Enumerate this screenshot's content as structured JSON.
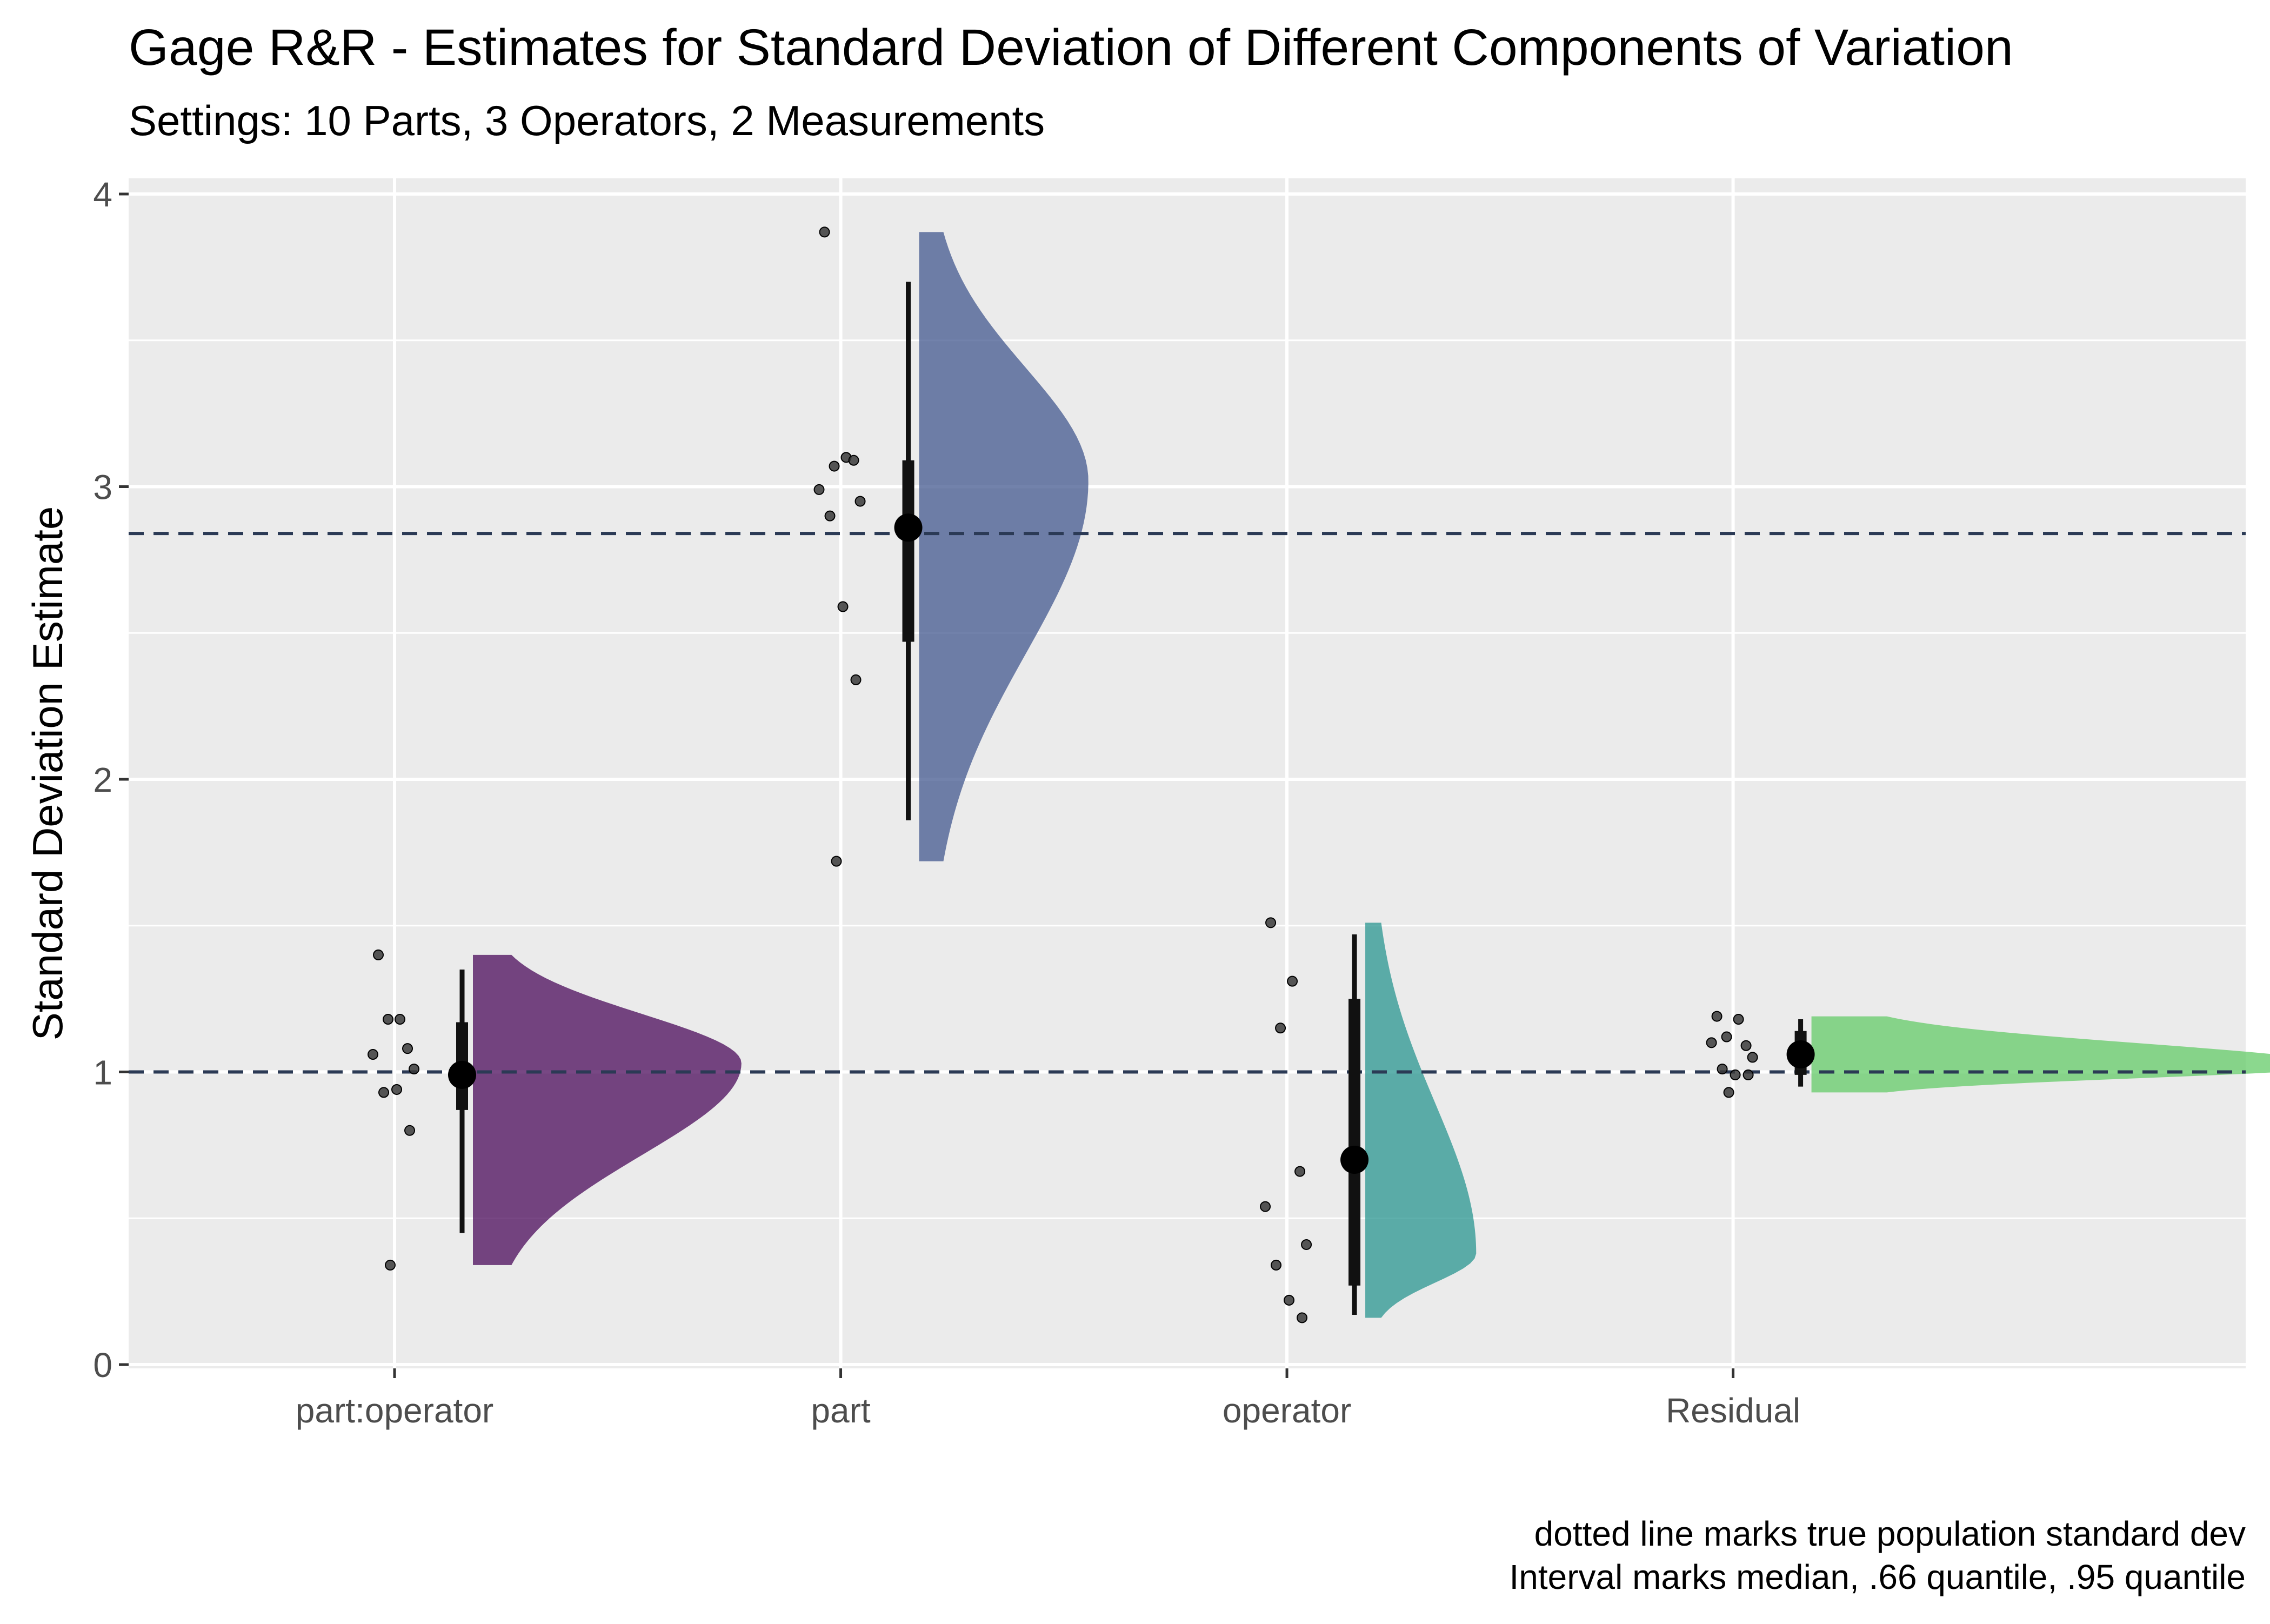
{
  "chart_data": {
    "type": "raincloud",
    "title": "Gage R&R - Estimates for Standard Deviation of Different Components of Variation",
    "subtitle": "Settings: 10 Parts, 3 Operators, 2 Measurements",
    "ylabel": "Standard Deviation Estimate",
    "xlabel": "",
    "ylim": [
      -0.04,
      4.04
    ],
    "yticks": [
      "0",
      "1",
      "2",
      "3",
      "4"
    ],
    "categories": [
      "part:operator",
      "part",
      "operator",
      "Residual"
    ],
    "reference_lines": [
      1,
      2.84
    ],
    "reference_line_style": "dashed",
    "grid": true,
    "caption_line1": "dotted line marks true population standard dev",
    "caption_line2": "Interval marks median, .66 quantile, .95 quantile",
    "series": [
      {
        "category": "part:operator",
        "color": "#440154",
        "points": [
          1.4,
          1.18,
          1.18,
          1.08,
          1.06,
          1.01,
          0.93,
          0.94,
          0.8,
          0.34
        ],
        "median": 0.99,
        "q66": [
          0.87,
          1.17
        ],
        "q95": [
          0.45,
          1.35
        ],
        "density_range": [
          0.34,
          1.4
        ],
        "density_peak": 1.03,
        "density_width_rel": 0.46
      },
      {
        "category": "part",
        "color": "#3b528b",
        "points": [
          3.87,
          3.1,
          3.07,
          3.09,
          2.99,
          2.95,
          2.9,
          2.59,
          2.34,
          1.72
        ],
        "median": 2.86,
        "q66": [
          2.47,
          3.09
        ],
        "q95": [
          1.86,
          3.7
        ],
        "density_range": [
          1.72,
          3.87
        ],
        "density_peak": 3.02,
        "density_width_rel": 0.29
      },
      {
        "category": "operator",
        "color": "#21918c",
        "points": [
          1.51,
          1.31,
          1.15,
          0.66,
          0.54,
          0.41,
          0.34,
          0.22,
          0.16
        ],
        "median": 0.7,
        "q66": [
          0.27,
          1.25
        ],
        "q95": [
          0.17,
          1.47
        ],
        "density_range": [
          0.16,
          1.51
        ],
        "density_peak": 0.38,
        "density_width_rel": 0.19
      },
      {
        "category": "Residual",
        "color": "#5ec962",
        "points": [
          1.19,
          1.18,
          1.12,
          1.09,
          1.1,
          1.05,
          1.01,
          0.99,
          0.99,
          0.93
        ],
        "median": 1.06,
        "q66": [
          0.99,
          1.14
        ],
        "q95": [
          0.95,
          1.18
        ],
        "density_range": [
          0.93,
          1.19
        ],
        "density_peak": 1.02,
        "density_width_rel": 0.9
      }
    ]
  }
}
